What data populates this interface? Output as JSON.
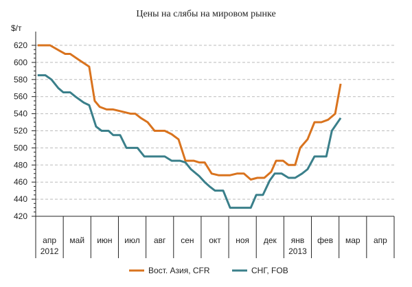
{
  "chart_data": {
    "type": "line",
    "title": "Цены на слябы на мировом рынке",
    "ylabel": "$/т",
    "ylim": [
      420,
      620
    ],
    "yticks": [
      420,
      440,
      460,
      480,
      500,
      520,
      540,
      560,
      580,
      600,
      620
    ],
    "grid": true,
    "categories": [
      "апр",
      "май",
      "июн",
      "июл",
      "авг",
      "сен",
      "окт",
      "ноя",
      "дек",
      "янв",
      "фев",
      "мар",
      "апр"
    ],
    "year_labels": [
      {
        "category_index": 0,
        "text": "2012"
      },
      {
        "category_index": 9,
        "text": "2013"
      }
    ],
    "x_unit": "months since start of апр 2012",
    "legend_position": "bottom",
    "series": [
      {
        "name": "Вост. Азия, CFR",
        "color": "#d9731e",
        "x": [
          0.07,
          0.52,
          0.9,
          1.07,
          1.25,
          1.57,
          1.94,
          2.14,
          2.32,
          2.57,
          2.81,
          3.19,
          3.44,
          3.61,
          3.81,
          4.06,
          4.31,
          4.68,
          4.93,
          5.18,
          5.43,
          5.73,
          5.93,
          6.13,
          6.38,
          6.63,
          7.05,
          7.3,
          7.55,
          7.8,
          8.04,
          8.29,
          8.54,
          8.72,
          8.97,
          9.17,
          9.41,
          9.59,
          9.86,
          10.11,
          10.36,
          10.61,
          10.86,
          11.06
        ],
        "values": [
          620,
          620,
          613,
          610,
          610,
          603,
          595,
          555,
          548,
          545,
          545,
          542,
          540,
          540,
          535,
          530,
          520,
          520,
          516,
          510,
          485,
          485,
          483,
          483,
          470,
          468,
          468,
          470,
          470,
          463,
          465,
          465,
          472,
          485,
          485,
          480,
          480,
          500,
          510,
          530,
          530,
          533,
          540,
          575
        ]
      },
      {
        "name": "СНГ, FOB",
        "color": "#3a7f8a",
        "x": [
          0.07,
          0.35,
          0.57,
          0.82,
          1.0,
          1.25,
          1.44,
          1.74,
          1.94,
          2.19,
          2.39,
          2.64,
          2.81,
          3.06,
          3.29,
          3.69,
          3.94,
          4.68,
          4.93,
          5.23,
          5.43,
          5.63,
          5.93,
          6.13,
          6.3,
          6.5,
          6.8,
          7.05,
          7.8,
          8.0,
          8.24,
          8.49,
          8.67,
          8.92,
          9.17,
          9.41,
          9.66,
          9.86,
          10.11,
          10.54,
          10.74,
          11.06
        ],
        "values": [
          585,
          585,
          580,
          570,
          565,
          565,
          560,
          553,
          550,
          525,
          520,
          520,
          515,
          515,
          500,
          500,
          490,
          490,
          485,
          485,
          483,
          475,
          467,
          460,
          455,
          450,
          450,
          430,
          430,
          445,
          445,
          462,
          470,
          470,
          465,
          465,
          470,
          475,
          490,
          490,
          520,
          535
        ]
      }
    ]
  }
}
